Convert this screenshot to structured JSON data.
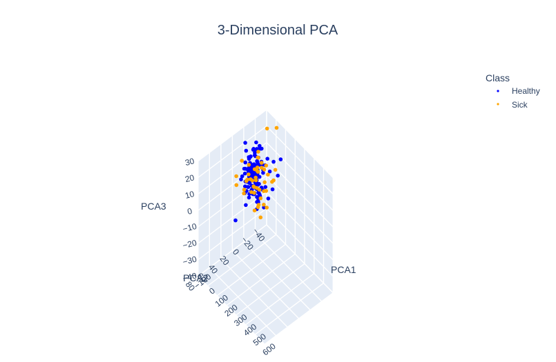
{
  "chart_data": {
    "type": "scatter",
    "title": "3-Dimensional PCA",
    "legend": {
      "title": "Class",
      "placement": "top-right"
    },
    "axes": {
      "x": {
        "label": "PCA1",
        "range": [
          -100,
          600
        ],
        "ticks": [
          -100,
          0,
          100,
          200,
          300,
          400,
          500,
          600
        ],
        "tick_labels": [
          "−100",
          "0",
          "100",
          "200",
          "300",
          "400",
          "500",
          "600"
        ]
      },
      "y": {
        "label": "PCA2",
        "range": [
          -40,
          80
        ],
        "ticks": [
          -40,
          -20,
          0,
          20,
          40,
          60,
          80
        ],
        "tick_labels": [
          "−40",
          "−20",
          "0",
          "20",
          "40",
          "60",
          "80"
        ]
      },
      "z": {
        "label": "PCA3",
        "range": [
          -40,
          30
        ],
        "ticks": [
          -40,
          -30,
          -20,
          -10,
          0,
          10,
          20,
          30
        ],
        "tick_labels": [
          "−40",
          "−30",
          "−20",
          "−10",
          "0",
          "10",
          "20",
          "30"
        ]
      }
    },
    "grid": true,
    "background_color": "#e5ecf6",
    "series": [
      {
        "name": "Healthy",
        "color": "#0000ff",
        "points": [
          [
            53,
            13.3,
            24.5
          ],
          [
            79,
            15.5,
            16.1
          ],
          [
            92,
            24.2,
            21.2
          ],
          [
            138,
            -10.8,
            3.2
          ],
          [
            113,
            26.7,
            31.1
          ],
          [
            90,
            -20.6,
            14.6
          ],
          [
            27,
            35.6,
            -10.1
          ],
          [
            61,
            15.4,
            12.8
          ],
          [
            34,
            19.7,
            33.3
          ],
          [
            85,
            -33.9,
            12.3
          ],
          [
            76,
            12.7,
            29.8
          ],
          [
            34,
            20.0,
            6.9
          ],
          [
            31,
            17.7,
            27.8
          ],
          [
            12,
            8.9,
            -1.9
          ],
          [
            200,
            -9.7,
            15.5
          ],
          [
            60,
            3.8,
            -9.6
          ],
          [
            42,
            -8.9,
            12.9
          ],
          [
            88,
            1.3,
            28.1
          ],
          [
            149,
            19.1,
            24.1
          ],
          [
            59,
            -4.8,
            24.9
          ],
          [
            61,
            26.0,
            20.8
          ],
          [
            144,
            2.7,
            8.5
          ],
          [
            106,
            25.0,
            29.2
          ],
          [
            151,
            16.3,
            3.3
          ],
          [
            111,
            7.6,
            14.0
          ],
          [
            166,
            -1.3,
            18.2
          ],
          [
            178,
            8.7,
            25.3
          ],
          [
            161,
            8.1,
            -1.5
          ],
          [
            96,
            27.6,
            9.8
          ],
          [
            75,
            12.6,
            18.4
          ],
          [
            76,
            1.4,
            27.5
          ],
          [
            115,
            25.9,
            17.8
          ],
          [
            147,
            7.3,
            18.5
          ],
          [
            47,
            3.6,
            25.2
          ],
          [
            84,
            17.7,
            6.5
          ],
          [
            199,
            22.0,
            12.1
          ],
          [
            189,
            20.5,
            29.3
          ],
          [
            51,
            6.9,
            13.4
          ],
          [
            59,
            17.3,
            0.9
          ],
          [
            144,
            15.6,
            13.4
          ],
          [
            70,
            25.3,
            13.4
          ],
          [
            75,
            18.9,
            13.2
          ],
          [
            77,
            7.7,
            33.0
          ],
          [
            143,
            17.4,
            6.2
          ],
          [
            67,
            7.2,
            6.7
          ],
          [
            88,
            0.4,
            20.0
          ],
          [
            111,
            19.0,
            22.8
          ],
          [
            176,
            22.9,
            6.6
          ],
          [
            130,
            22.6,
            17.6
          ],
          [
            179,
            3.5,
            3.8
          ],
          [
            74,
            5.2,
            18.2
          ],
          [
            62,
            15.8,
            25.3
          ],
          [
            129,
            28.6,
            20.2
          ],
          [
            128,
            13.4,
            24.5
          ],
          [
            32,
            7.0,
            14.6
          ],
          [
            135,
            8.0,
            9.0
          ],
          [
            106,
            5.8,
            1.6
          ],
          [
            90,
            17.4,
            7.6
          ],
          [
            113,
            13.3,
            14.9
          ],
          [
            120,
            15.9,
            15.1
          ],
          [
            61,
            2.9,
            11.9
          ],
          [
            61,
            24.0,
            24.1
          ],
          [
            96,
            9.7,
            30.7
          ],
          [
            131,
            4.4,
            18.5
          ],
          [
            116,
            32.4,
            3.6
          ],
          [
            120,
            11.0,
            1.9
          ],
          [
            132,
            14.4,
            21.3
          ],
          [
            118,
            17.0,
            31.5
          ],
          [
            121,
            19.4,
            17.5
          ],
          [
            30,
            24.3,
            13.9
          ],
          [
            128,
            15.1,
            11.5
          ],
          [
            72,
            26.8,
            6.8
          ],
          [
            89,
            8.3,
            29.8
          ],
          [
            126,
            19.4,
            7.4
          ],
          [
            66,
            10.5,
            13.2
          ],
          [
            144,
            19.6,
            22.5
          ],
          [
            172,
            19.3,
            11.3
          ],
          [
            111,
            15.0,
            9.4
          ],
          [
            125,
            28.0,
            25.8
          ],
          [
            157,
            20.2,
            12.6
          ],
          [
            64,
            4.1,
            12.0
          ],
          [
            98,
            21.3,
            15.5
          ],
          [
            96,
            18.9,
            6.8
          ],
          [
            33,
            15.9,
            8.5
          ],
          [
            91,
            15.9,
            4.5
          ],
          [
            128,
            13.3,
            19.4
          ],
          [
            195,
            7.7,
            30.0
          ],
          [
            113,
            16.4,
            29.5
          ],
          [
            76,
            18.9,
            11.1
          ],
          [
            107,
            3.5,
            5.2
          ],
          [
            107,
            22.0,
            16.3
          ],
          [
            125,
            9.8,
            23.0
          ],
          [
            97,
            12.1,
            26.9
          ],
          [
            127,
            19.8,
            11.8
          ],
          [
            99,
            14.5,
            21.7
          ],
          [
            82,
            12.3,
            21.2
          ],
          [
            172,
            28.6,
            29.5
          ],
          [
            50,
            7.7,
            27.5
          ],
          [
            86,
            16.7,
            22.0
          ],
          [
            95,
            10.7,
            15.4
          ],
          [
            58,
            3.6,
            7.8
          ],
          [
            56,
            16.6,
            13.5
          ],
          [
            112,
            16.1,
            6.4
          ],
          [
            101,
            13.2,
            16.1
          ],
          [
            104,
            13.5,
            11.6
          ],
          [
            104,
            30.6,
            24.5
          ],
          [
            131,
            26.7,
            19.3
          ],
          [
            79,
            17.6,
            14.5
          ],
          [
            128,
            17.6,
            15.1
          ],
          [
            93,
            30.1,
            20.8
          ],
          [
            87,
            18.2,
            19.4
          ],
          [
            112,
            11.8,
            24.5
          ],
          [
            132,
            18.7,
            21.6
          ],
          [
            120,
            14.4,
            19.3
          ],
          [
            100,
            10.1,
            23.6
          ],
          [
            64,
            11.4,
            17.9
          ],
          [
            175,
            19.3,
            10.9
          ],
          [
            106,
            0.9,
            4.0
          ],
          [
            103,
            11.5,
            11.1
          ],
          [
            127,
            11.1,
            11.6
          ],
          [
            40,
            -4.4,
            25.5
          ],
          [
            142,
            19.5,
            17.8
          ],
          [
            163,
            27.4,
            16.7
          ],
          [
            112,
            21.1,
            12.2
          ],
          [
            39,
            27.9,
            13.5
          ],
          [
            133,
            15.4,
            23.6
          ],
          [
            106,
            12.4,
            10.7
          ],
          [
            79,
            18.8,
            23.5
          ],
          [
            95,
            13.2,
            12.5
          ],
          [
            103,
            25.3,
            20.9
          ],
          [
            102,
            20.9,
            15.6
          ],
          [
            123,
            13.9,
            21.8
          ],
          [
            119,
            12.5,
            17.0
          ],
          [
            88,
            24.3,
            10.9
          ],
          [
            104,
            15.8,
            22.2
          ],
          [
            95,
            17.9,
            17.3
          ],
          [
            113,
            16.2,
            16.8
          ],
          [
            98,
            20.5,
            24.3
          ],
          [
            88,
            21.6,
            14.1
          ],
          [
            131,
            18.8,
            15.3
          ],
          [
            114,
            27.5,
            17.6
          ],
          [
            122,
            28.7,
            14.0
          ],
          [
            94,
            18.9,
            17.9
          ],
          [
            106,
            18.8,
            22.1
          ],
          [
            60,
            1.0,
            21.0
          ],
          [
            116,
            23.9,
            16.3
          ],
          [
            100,
            17.4,
            21.3
          ],
          [
            124,
            18.7,
            19.2
          ],
          [
            90,
            15.7,
            12.6
          ]
        ]
      },
      {
        "name": "Sick",
        "color": "#ffa500",
        "points": [
          [
            144,
            -9.0,
            8.6
          ],
          [
            208,
            -1.0,
            15.4
          ],
          [
            101,
            -21.9,
            10.0
          ],
          [
            93,
            13.0,
            19.0
          ],
          [
            129,
            24.8,
            10.3
          ],
          [
            25,
            1.8,
            -13.0
          ],
          [
            45,
            -15.0,
            11.1
          ],
          [
            107,
            47.6,
            24.6
          ],
          [
            25,
            -20.0,
            31.1
          ],
          [
            57,
            29.4,
            26.3
          ],
          [
            25,
            -36.7,
            27.2
          ],
          [
            121,
            14.0,
            9.5
          ],
          [
            149,
            1.2,
            -4.1
          ],
          [
            196,
            31.2,
            19.0
          ],
          [
            98,
            9.0,
            19.3
          ],
          [
            100,
            11.9,
            12.4
          ],
          [
            123,
            11.8,
            27.4
          ],
          [
            157,
            6.2,
            13.1
          ],
          [
            106,
            3.0,
            18.1
          ],
          [
            92,
            31.7,
            9.1
          ],
          [
            47,
            12.6,
            10.1
          ],
          [
            69,
            -3.1,
            17.3
          ],
          [
            99,
            3.6,
            -0.8
          ],
          [
            94,
            6.9,
            28.1
          ],
          [
            168,
            26.4,
            12.5
          ],
          [
            82,
            5.4,
            14.8
          ],
          [
            73,
            -7.0,
            12.4
          ],
          [
            123,
            21.9,
            16.2
          ],
          [
            93,
            45.0,
            17.7
          ],
          [
            137,
            4.3,
            6.0
          ],
          [
            73,
            20.4,
            16.6
          ],
          [
            83,
            7.3,
            16.1
          ],
          [
            141,
            0.9,
            5.5
          ],
          [
            130,
            10.7,
            8.1
          ],
          [
            176,
            16.5,
            -4.5
          ],
          [
            152,
            17.1,
            0.5
          ],
          [
            87,
            24.7,
            15.4
          ],
          [
            126,
            16.7,
            16.8
          ],
          [
            95,
            -9.8,
            9.9
          ],
          [
            63,
            26.5,
            8.3
          ],
          [
            209,
            16.4,
            5.2
          ],
          [
            179,
            20.4,
            4.4
          ],
          [
            125,
            12.9,
            28.0
          ],
          [
            134,
            21.7,
            13.3
          ],
          [
            80,
            21.0,
            23.0
          ],
          [
            64,
            22.8,
            12.6
          ]
        ]
      }
    ]
  }
}
